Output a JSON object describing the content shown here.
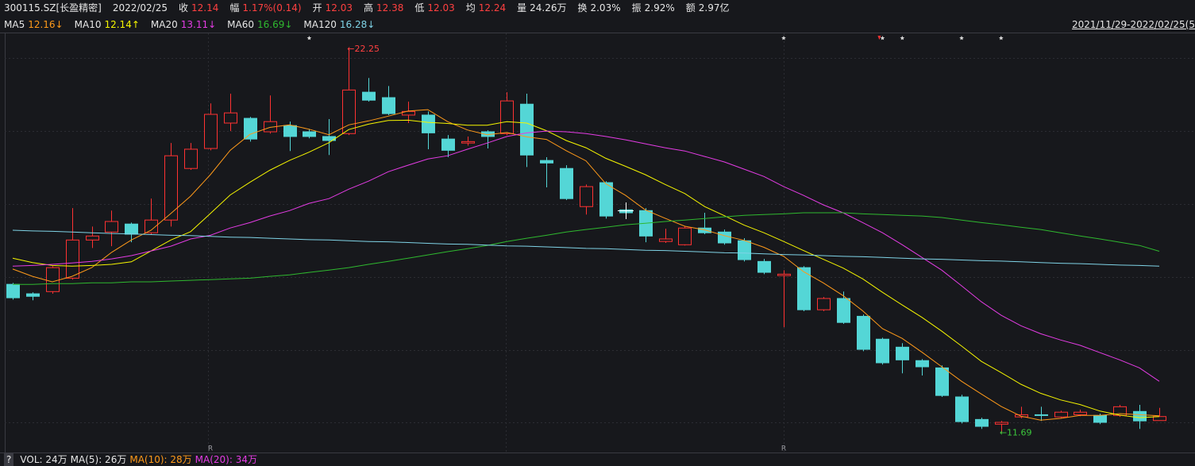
{
  "header": {
    "code": "300115.SZ[长盈精密]",
    "date": "2022/02/25",
    "fields": [
      {
        "label": "收",
        "value": "12.14",
        "color": "#ff4040"
      },
      {
        "label": "幅",
        "value": "1.17%(0.14)",
        "color": "#ff4040"
      },
      {
        "label": "开",
        "value": "12.03",
        "color": "#ff4040"
      },
      {
        "label": "高",
        "value": "12.38",
        "color": "#ff4040"
      },
      {
        "label": "低",
        "value": "12.03",
        "color": "#ff4040"
      },
      {
        "label": "均",
        "value": "12.24",
        "color": "#ff4040"
      },
      {
        "label": "量",
        "value": "24.26万",
        "color": "#e6e6e6"
      },
      {
        "label": "换",
        "value": "2.03%",
        "color": "#e6e6e6"
      },
      {
        "label": "振",
        "value": "2.92%",
        "color": "#e6e6e6"
      },
      {
        "label": "额",
        "value": "2.97亿",
        "color": "#e6e6e6"
      }
    ]
  },
  "chart_data": {
    "type": "candlestick",
    "date_range": "2021/11/29-2022/02/25(5",
    "up_color": "#ff3232",
    "down_color": "#54d6d6",
    "ylim": [
      11.15,
      22.69
    ],
    "open": [
      15.78,
      15.52,
      15.58,
      15.95,
      17.0,
      17.22,
      17.44,
      17.2,
      17.55,
      18.97,
      19.52,
      20.22,
      20.35,
      19.98,
      20.15,
      19.98,
      19.85,
      19.93,
      21.07,
      20.92,
      20.44,
      20.44,
      19.78,
      19.67,
      19.98,
      19.93,
      20.74,
      19.19,
      18.97,
      17.92,
      18.58,
      17.83,
      17.81,
      16.96,
      16.87,
      17.33,
      17.22,
      16.98,
      16.41,
      16.02,
      16.24,
      15.08,
      15.39,
      14.9,
      14.27,
      14.05,
      13.68,
      13.48,
      12.68,
      12.06,
      11.93,
      12.13,
      12.19,
      12.13,
      12.19,
      12.17,
      12.17,
      12.28,
      12.03
    ],
    "high": [
      15.82,
      15.56,
      16.28,
      17.88,
      17.37,
      17.81,
      17.48,
      18.14,
      19.67,
      19.67,
      20.76,
      21.03,
      20.39,
      20.98,
      20.26,
      20.06,
      20.33,
      22.25,
      21.46,
      21.24,
      20.81,
      20.54,
      19.89,
      19.85,
      20.02,
      21.07,
      21.03,
      19.28,
      19.06,
      18.53,
      18.62,
      17.92,
      17.88,
      17.31,
      17.38,
      17.75,
      17.29,
      17.05,
      16.48,
      16.17,
      16.28,
      15.43,
      15.58,
      14.95,
      14.31,
      14.16,
      13.72,
      13.55,
      12.74,
      12.11,
      12.02,
      12.41,
      12.41,
      12.3,
      12.33,
      12.22,
      12.46,
      12.46,
      12.38
    ],
    "low": [
      15.36,
      15.34,
      15.52,
      15.91,
      16.78,
      16.83,
      16.94,
      17.16,
      17.37,
      18.93,
      19.47,
      20.0,
      19.71,
      19.93,
      19.45,
      19.8,
      19.34,
      19.89,
      20.81,
      20.44,
      20.22,
      19.5,
      19.28,
      19.6,
      19.52,
      19.89,
      19.01,
      18.45,
      18.1,
      17.7,
      17.59,
      17.66,
      16.94,
      16.92,
      16.85,
      17.16,
      16.87,
      16.41,
      16.06,
      14.6,
      15.04,
      15.04,
      14.69,
      13.94,
      13.57,
      13.33,
      13.27,
      12.68,
      11.95,
      11.8,
      11.69,
      12.09,
      12.02,
      12.09,
      12.15,
      11.93,
      12.13,
      11.8,
      12.03
    ],
    "close": [
      15.41,
      15.45,
      16.24,
      17.0,
      17.11,
      17.51,
      17.16,
      17.55,
      19.32,
      19.5,
      20.46,
      20.5,
      19.78,
      20.26,
      19.85,
      19.85,
      19.74,
      21.13,
      20.85,
      20.48,
      20.54,
      19.95,
      19.47,
      19.71,
      19.85,
      20.83,
      19.34,
      19.12,
      18.14,
      18.47,
      17.66,
      17.75,
      17.11,
      17.03,
      17.33,
      17.2,
      16.92,
      16.46,
      16.11,
      16.06,
      15.08,
      15.39,
      14.73,
      13.99,
      13.62,
      13.7,
      13.51,
      12.72,
      12.0,
      11.87,
      11.98,
      12.19,
      12.17,
      12.26,
      12.26,
      11.98,
      12.41,
      12.02,
      12.14
    ],
    "series": [
      {
        "name": "MA5",
        "label": "12.16↓",
        "color": "#ff9a1a",
        "values": [
          16.2,
          16.0,
          15.85,
          16.0,
          16.24,
          16.66,
          17.0,
          17.27,
          17.73,
          18.21,
          18.8,
          19.47,
          19.91,
          20.1,
          20.17,
          20.05,
          19.9,
          20.17,
          20.28,
          20.41,
          20.55,
          20.59,
          20.26,
          20.03,
          19.9,
          19.96,
          19.84,
          19.77,
          19.46,
          19.18,
          18.55,
          18.23,
          17.83,
          17.6,
          17.38,
          17.28,
          17.12,
          16.99,
          16.8,
          16.55,
          16.13,
          15.82,
          15.47,
          15.05,
          14.56,
          14.29,
          13.91,
          13.51,
          13.11,
          12.76,
          12.42,
          12.15,
          12.04,
          12.09,
          12.17,
          12.17,
          12.22,
          12.19,
          12.16
        ]
      },
      {
        "name": "MA10",
        "label": "12.14↑",
        "color": "#f5f500",
        "values": [
          16.5,
          16.38,
          16.3,
          16.28,
          16.3,
          16.33,
          16.4,
          16.7,
          17.0,
          17.23,
          17.73,
          18.24,
          18.59,
          18.92,
          19.19,
          19.42,
          19.68,
          20.04,
          20.19,
          20.29,
          20.3,
          20.24,
          20.21,
          20.16,
          20.16,
          20.26,
          20.22,
          20.01,
          19.74,
          19.54,
          19.25,
          19.03,
          18.8,
          18.53,
          18.28,
          17.92,
          17.67,
          17.41,
          17.2,
          16.96,
          16.71,
          16.47,
          16.23,
          15.93,
          15.56,
          15.21,
          14.87,
          14.49,
          14.08,
          13.66,
          13.35,
          13.03,
          12.78,
          12.6,
          12.47,
          12.29,
          12.18,
          12.11,
          12.14
        ]
      },
      {
        "name": "MA20",
        "label": "13.11↓",
        "color": "#e43ce4",
        "values": [
          16.28,
          16.3,
          16.33,
          16.37,
          16.41,
          16.48,
          16.57,
          16.7,
          16.83,
          17.03,
          17.13,
          17.33,
          17.48,
          17.66,
          17.81,
          18.01,
          18.14,
          18.4,
          18.62,
          18.88,
          19.06,
          19.23,
          19.32,
          19.5,
          19.67,
          19.85,
          19.95,
          20.0,
          19.98,
          19.93,
          19.85,
          19.76,
          19.65,
          19.54,
          19.45,
          19.3,
          19.15,
          18.95,
          18.75,
          18.47,
          18.23,
          17.97,
          17.75,
          17.48,
          17.2,
          16.87,
          16.52,
          16.17,
          15.74,
          15.3,
          14.93,
          14.64,
          14.42,
          14.25,
          14.1,
          13.9,
          13.7,
          13.48,
          13.11
        ]
      },
      {
        "name": "MA60",
        "label": "16.69↓",
        "color": "#2fb82f",
        "values": [
          15.78,
          15.78,
          15.8,
          15.8,
          15.82,
          15.82,
          15.85,
          15.85,
          15.87,
          15.89,
          15.91,
          15.93,
          15.95,
          16.0,
          16.04,
          16.11,
          16.17,
          16.24,
          16.33,
          16.41,
          16.5,
          16.59,
          16.68,
          16.76,
          16.85,
          16.96,
          17.05,
          17.13,
          17.22,
          17.29,
          17.35,
          17.42,
          17.46,
          17.51,
          17.55,
          17.59,
          17.64,
          17.68,
          17.7,
          17.72,
          17.75,
          17.75,
          17.75,
          17.72,
          17.7,
          17.68,
          17.66,
          17.62,
          17.55,
          17.48,
          17.42,
          17.35,
          17.29,
          17.2,
          17.11,
          17.03,
          16.94,
          16.85,
          16.69
        ]
      },
      {
        "name": "MA120",
        "label": "16.28↓",
        "color": "#7fd3e6",
        "values": [
          17.27,
          17.25,
          17.24,
          17.22,
          17.2,
          17.18,
          17.17,
          17.15,
          17.13,
          17.12,
          17.1,
          17.08,
          17.07,
          17.05,
          17.03,
          17.01,
          17.0,
          16.98,
          16.96,
          16.95,
          16.93,
          16.91,
          16.89,
          16.88,
          16.86,
          16.84,
          16.83,
          16.81,
          16.79,
          16.77,
          16.76,
          16.74,
          16.72,
          16.71,
          16.69,
          16.67,
          16.65,
          16.64,
          16.62,
          16.6,
          16.59,
          16.57,
          16.55,
          16.54,
          16.52,
          16.5,
          16.48,
          16.47,
          16.45,
          16.43,
          16.42,
          16.4,
          16.38,
          16.36,
          16.35,
          16.33,
          16.31,
          16.3,
          16.28
        ]
      }
    ],
    "annotations": [
      {
        "text": "←22.25",
        "color": "#ff4040"
      },
      {
        "text": "←11.69",
        "color": "#3cc83c"
      }
    ],
    "r_marks": [
      "R",
      "R"
    ]
  },
  "volume": {
    "help": "?",
    "items": [
      {
        "text": "VOL: 24万",
        "color": "#e6e6e6"
      },
      {
        "text": "MA(5): 26万",
        "color": "#e6e6e6"
      },
      {
        "text": "MA(10): 28万",
        "color": "#ff9a1a"
      },
      {
        "text": "MA(20): 34万",
        "color": "#e43ce4"
      }
    ]
  }
}
